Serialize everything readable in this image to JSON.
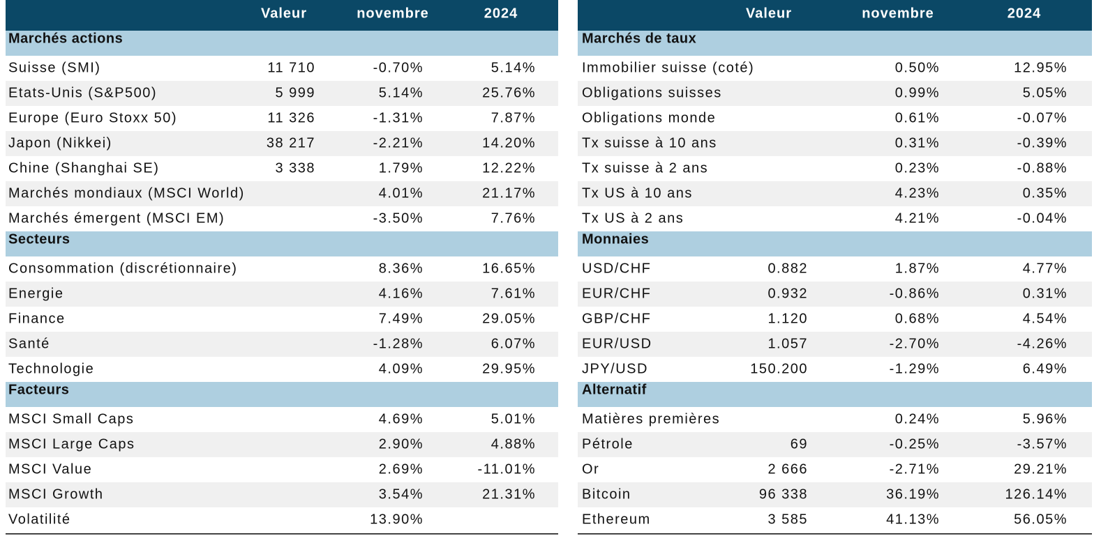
{
  "tables": [
    {
      "columns": [
        "Valeur",
        "novembre",
        "2024"
      ],
      "sections": [
        {
          "title": "Marchés actions",
          "rows": [
            [
              "Suisse (SMI)",
              "11 710",
              "-0.70%",
              "5.14%"
            ],
            [
              "Etats-Unis (S&P500)",
              "5 999",
              "5.14%",
              "25.76%"
            ],
            [
              "Europe (Euro Stoxx 50)",
              "11 326",
              "-1.31%",
              "7.87%"
            ],
            [
              "Japon (Nikkei)",
              "38 217",
              "-2.21%",
              "14.20%"
            ],
            [
              "Chine (Shanghai SE)",
              "3 338",
              "1.79%",
              "12.22%"
            ],
            [
              "Marchés mondiaux (MSCI World)",
              null,
              "4.01%",
              "21.17%"
            ],
            [
              "Marchés émergent (MSCI EM)",
              null,
              "-3.50%",
              "7.76%"
            ]
          ]
        },
        {
          "title": "Secteurs",
          "rows": [
            [
              "Consommation (discrétionnaire)",
              null,
              "8.36%",
              "16.65%"
            ],
            [
              "Energie",
              null,
              "4.16%",
              "7.61%"
            ],
            [
              "Finance",
              null,
              "7.49%",
              "29.05%"
            ],
            [
              "Santé",
              null,
              "-1.28%",
              "6.07%"
            ],
            [
              "Technologie",
              null,
              "4.09%",
              "29.95%"
            ]
          ]
        },
        {
          "title": "Facteurs",
          "rows": [
            [
              "MSCI Small Caps",
              null,
              "4.69%",
              "5.01%"
            ],
            [
              "MSCI Large Caps",
              null,
              "2.90%",
              "4.88%"
            ],
            [
              "MSCI Value",
              null,
              "2.69%",
              "-11.01%"
            ],
            [
              "MSCI Growth",
              null,
              "3.54%",
              "21.31%"
            ],
            [
              "Volatilité",
              null,
              "13.90%",
              null
            ]
          ]
        }
      ]
    },
    {
      "columns": [
        "Valeur",
        "novembre",
        "2024"
      ],
      "sections": [
        {
          "title": "Marchés de taux",
          "rows": [
            [
              "Immobilier suisse (coté)",
              null,
              "0.50%",
              "12.95%"
            ],
            [
              "Obligations suisses",
              null,
              "0.99%",
              "5.05%"
            ],
            [
              "Obligations monde",
              null,
              "0.61%",
              "-0.07%"
            ],
            [
              "Tx suisse à 10 ans",
              null,
              "0.31%",
              "-0.39%"
            ],
            [
              "Tx suisse à 2 ans",
              null,
              "0.23%",
              "-0.88%"
            ],
            [
              "Tx US à 10 ans",
              null,
              "4.23%",
              "0.35%"
            ],
            [
              "Tx US à 2 ans",
              null,
              "4.21%",
              "-0.04%"
            ]
          ]
        },
        {
          "title": "Monnaies",
          "rows": [
            [
              "USD/CHF",
              "0.882",
              "1.87%",
              "4.77%"
            ],
            [
              "EUR/CHF",
              "0.932",
              "-0.86%",
              "0.31%"
            ],
            [
              "GBP/CHF",
              "1.120",
              "0.68%",
              "4.54%"
            ],
            [
              "EUR/USD",
              "1.057",
              "-2.70%",
              "-4.26%"
            ],
            [
              "JPY/USD",
              "150.200",
              "-1.29%",
              "6.49%"
            ]
          ]
        },
        {
          "title": "Alternatif",
          "rows": [
            [
              "Matières premières",
              null,
              "0.24%",
              "5.96%"
            ],
            [
              "Pétrole",
              "69",
              "-0.25%",
              "-3.57%"
            ],
            [
              "Or",
              "2 666",
              "-2.71%",
              "29.21%"
            ],
            [
              "Bitcoin",
              "96 338",
              "36.19%",
              "126.14%"
            ],
            [
              "Ethereum",
              "3 585",
              "41.13%",
              "56.05%"
            ]
          ]
        }
      ]
    }
  ]
}
